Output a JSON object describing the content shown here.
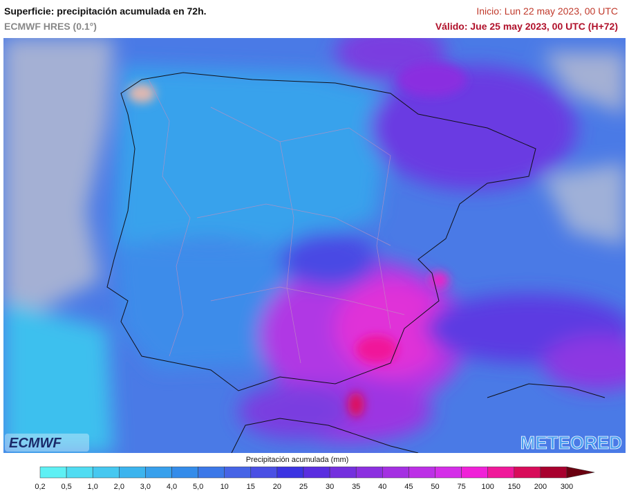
{
  "header": {
    "title": "Superficie: precipitación acumulada en 72h.",
    "model": "ECMWF HRES (0.1°)",
    "init": "Inicio: Lun 22 may 2023, 00 UTC",
    "valid": "Válido: Jue 25 may 2023, 00 UTC (H+72)"
  },
  "logos": {
    "left": "ECMWF",
    "right": "METEORED"
  },
  "legend": {
    "title": "Precipitación acumulada (mm)",
    "labels": [
      "0,2",
      "0,5",
      "1,0",
      "2,0",
      "3,0",
      "4,0",
      "5,0",
      "10",
      "15",
      "20",
      "25",
      "30",
      "35",
      "40",
      "45",
      "50",
      "75",
      "100",
      "150",
      "200",
      "300"
    ],
    "colors": [
      "#5ef0f4",
      "#50dcf2",
      "#46c8f0",
      "#3cb4ee",
      "#38a0ec",
      "#348cea",
      "#3c78e8",
      "#4664e6",
      "#4a50e4",
      "#3c34e2",
      "#5a2ee0",
      "#7430de",
      "#8c30e0",
      "#a430e2",
      "#bc30e6",
      "#d42ee8",
      "#f020d8",
      "#f0189a",
      "#d80c5a",
      "#a8002e"
    ],
    "arrow_color": "#6a0010"
  }
}
